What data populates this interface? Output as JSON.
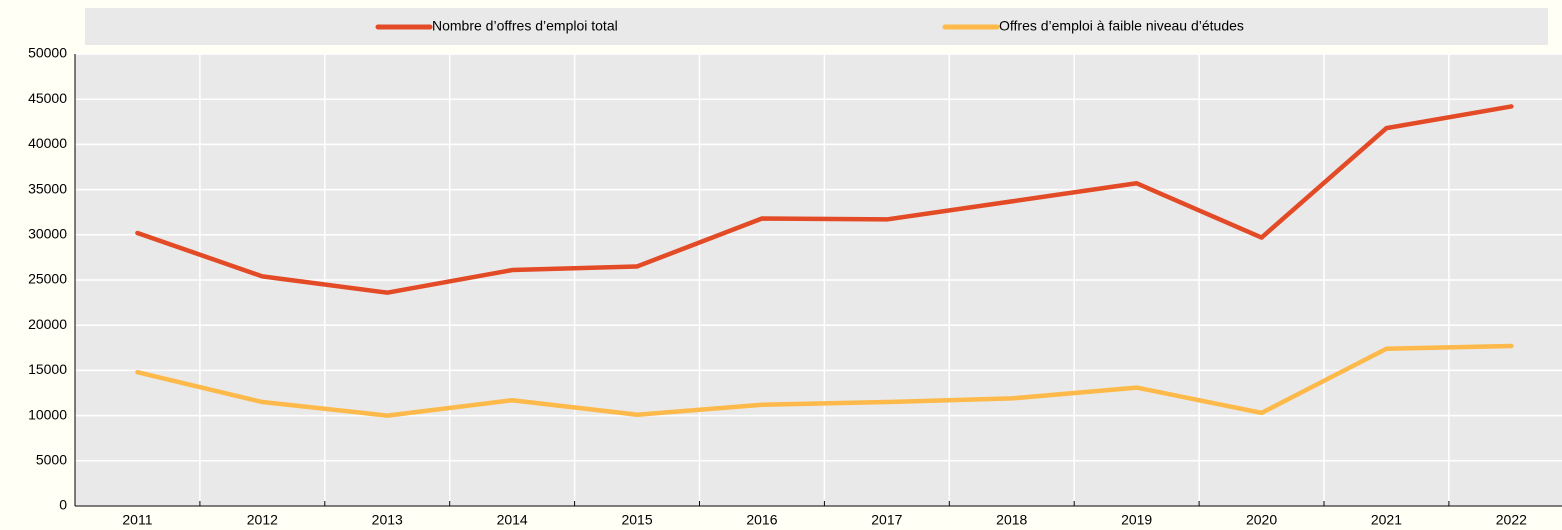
{
  "chart_data": {
    "type": "line",
    "categories": [
      "2011",
      "2012",
      "2013",
      "2014",
      "2015",
      "2016",
      "2017",
      "2018",
      "2019",
      "2020",
      "2021",
      "2022"
    ],
    "series": [
      {
        "name": "Nombre d’offres d’emploi total",
        "color": "#e34a26",
        "values": [
          30200,
          25400,
          23600,
          26100,
          26500,
          31800,
          31700,
          33700,
          35700,
          29700,
          41800,
          44200
        ]
      },
      {
        "name": "Offres d’emploi à faible niveau d’études",
        "color": "#fdb94a",
        "values": [
          14800,
          11500,
          10000,
          11700,
          10100,
          11200,
          11500,
          11900,
          13100,
          10300,
          17400,
          17700
        ]
      }
    ],
    "ylim": [
      0,
      50000
    ],
    "yticks": [
      0,
      5000,
      10000,
      15000,
      20000,
      25000,
      30000,
      35000,
      40000,
      45000,
      50000
    ],
    "grid": true,
    "legend": "top"
  }
}
